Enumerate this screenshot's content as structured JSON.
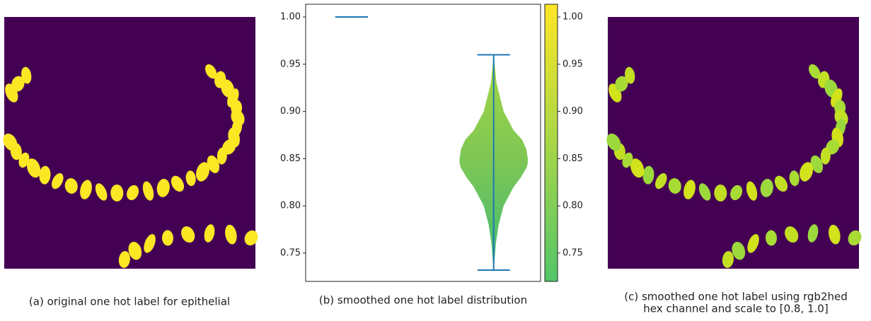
{
  "panels": [
    {
      "caption": [
        "(a) original one hot label for epithelial"
      ]
    },
    {
      "caption": [
        "(b) smoothed one hot label distribution"
      ]
    },
    {
      "caption": [
        "(c) smoothed one hot label using rgb2hed",
        "hex channel and scale to [0.8, 1.0]"
      ]
    }
  ],
  "chart_data": {
    "type": "violin",
    "ylim": [
      0.72,
      1.0135
    ],
    "yticks": [
      0.75,
      {
        "value": 0.8,
        "label": "0.80"
      },
      0.85,
      {
        "value": 0.9,
        "label": "0.90"
      },
      0.95,
      {
        "value": 1,
        "label": "1.00"
      }
    ],
    "xlim": [
      0.677,
      2.33
    ],
    "color": "#1f77b4",
    "violins": [
      {
        "position": 1,
        "min": 1.0,
        "max": 1.0
      },
      {
        "position": 2,
        "min": 0.732,
        "max": 0.96,
        "kde_y": [
          0.732,
          0.74,
          0.76,
          0.78,
          0.8,
          0.82,
          0.83,
          0.84,
          0.845,
          0.85,
          0.86,
          0.87,
          0.88,
          0.9,
          0.93,
          0.96
        ],
        "kde_half_width": [
          0,
          0.005,
          0.015,
          0.035,
          0.07,
          0.14,
          0.19,
          0.23,
          0.24,
          0.24,
          0.23,
          0.2,
          0.14,
          0.07,
          0.02,
          0
        ]
      }
    ],
    "colorbar": {
      "lim": [
        0.72,
        1.0135
      ],
      "colors": [
        "#52c569",
        "#fde725"
      ],
      "ticks": [
        0.75,
        {
          "value": 0.8,
          "label": "0.80"
        },
        0.85,
        {
          "value": 0.9,
          "label": "0.90"
        },
        0.95,
        {
          "value": 1,
          "label": "1.00"
        }
      ]
    }
  }
}
